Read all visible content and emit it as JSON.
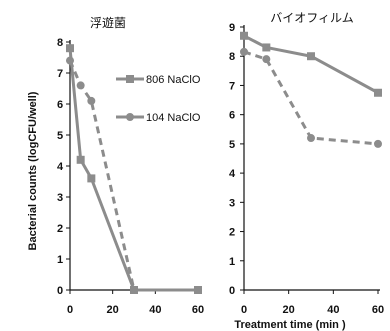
{
  "chart_data": [
    {
      "type": "line",
      "title": "浮遊菌",
      "xlim": [
        0,
        60
      ],
      "ylim": [
        0,
        8
      ],
      "xticks": [
        "0",
        "20",
        "40",
        "60"
      ],
      "yticks": [
        "0",
        "1",
        "2",
        "3",
        "4",
        "5",
        "6",
        "7",
        "8"
      ],
      "ylabel": "Bacterial counts  (logCFU/well)",
      "legend_position": "right",
      "series": [
        {
          "name": "806 NaClO",
          "x": [
            0,
            5,
            10,
            30,
            60
          ],
          "values": [
            7.8,
            4.2,
            3.6,
            0,
            0
          ],
          "color": "#8c8c8c",
          "marker": "square",
          "dash": "solid"
        },
        {
          "name": "104 NaClO",
          "x": [
            0,
            5,
            10,
            30,
            60
          ],
          "values": [
            7.4,
            6.6,
            6.1,
            0,
            0
          ],
          "color": "#8c8c8c",
          "marker": "circle",
          "dash": "dashed"
        }
      ]
    },
    {
      "type": "line",
      "title": "バイオフィルム",
      "xlim": [
        0,
        60
      ],
      "ylim": [
        0,
        9
      ],
      "xticks": [
        "0",
        "20",
        "40",
        "60"
      ],
      "yticks": [
        "0",
        "1",
        "2",
        "3",
        "4",
        "5",
        "6",
        "7",
        "8",
        "9"
      ],
      "xlabel": "Treatment  time (min )",
      "series": [
        {
          "name": "806 NaClO",
          "x": [
            0,
            10,
            30,
            60
          ],
          "values": [
            8.7,
            8.3,
            8.0,
            6.75
          ],
          "color": "#8c8c8c",
          "marker": "square",
          "dash": "solid"
        },
        {
          "name": "104 NaClO",
          "x": [
            0,
            10,
            30,
            60
          ],
          "values": [
            8.15,
            7.9,
            5.2,
            5.0
          ],
          "color": "#8c8c8c",
          "marker": "circle",
          "dash": "dashed"
        }
      ]
    }
  ]
}
